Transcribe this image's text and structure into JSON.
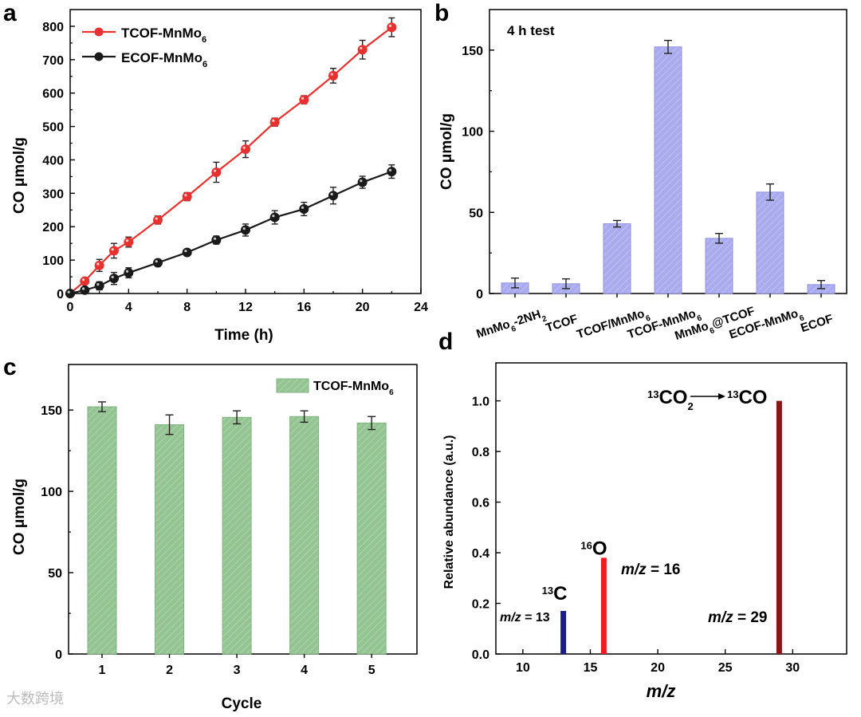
{
  "chart_data": [
    {
      "panel": "a",
      "type": "line",
      "xlabel": "Time (h)",
      "ylabel": "CO μmol/g",
      "xlim": [
        0,
        24
      ],
      "ylim": [
        0,
        850
      ],
      "xticks": [
        "0",
        "4",
        "8",
        "12",
        "16",
        "20",
        "24"
      ],
      "yticks": [
        "0",
        "100",
        "200",
        "300",
        "400",
        "500",
        "600",
        "700",
        "800"
      ],
      "legend_position": "top-left",
      "series": [
        {
          "name": "TCOF-MnMo",
          "name_sub": "6",
          "color": "#e8312f",
          "x": [
            0,
            1,
            2,
            3,
            4,
            6,
            8,
            10,
            12,
            14,
            16,
            18,
            20,
            22
          ],
          "y": [
            0,
            37,
            84,
            128,
            154,
            220,
            290,
            363,
            432,
            513,
            580,
            652,
            730,
            797
          ],
          "err": [
            0,
            8,
            18,
            22,
            15,
            12,
            12,
            30,
            25,
            12,
            12,
            22,
            28,
            28
          ]
        },
        {
          "name": "ECOF-MnMo",
          "name_sub": "6",
          "color": "#1a1a1a",
          "x": [
            0,
            1,
            2,
            3,
            4,
            6,
            8,
            10,
            12,
            14,
            16,
            18,
            20,
            22
          ],
          "y": [
            0,
            10,
            23,
            45,
            62,
            92,
            123,
            160,
            190,
            228,
            253,
            293,
            333,
            365
          ],
          "err": [
            0,
            5,
            12,
            18,
            15,
            10,
            8,
            12,
            18,
            20,
            20,
            25,
            18,
            20
          ]
        }
      ]
    },
    {
      "panel": "b",
      "type": "bar",
      "annotation": "4 h test",
      "ylabel": "CO μmol/g",
      "ylim": [
        0,
        175
      ],
      "yticks": [
        "0",
        "50",
        "100",
        "150"
      ],
      "bar_color": "#a8aaee",
      "categories": [
        {
          "parts": [
            "MnMo",
            "6",
            "-2NH",
            "2"
          ]
        },
        {
          "parts": [
            "TCOF"
          ]
        },
        {
          "parts": [
            "TCOF/MnMo",
            "6"
          ]
        },
        {
          "parts": [
            "TCOF-MnMo",
            "6"
          ]
        },
        {
          "parts": [
            "MnMo",
            "6",
            "@TCOF"
          ]
        },
        {
          "parts": [
            "ECOF-MnMo",
            "6"
          ]
        },
        {
          "parts": [
            "ECOF"
          ]
        }
      ],
      "values": [
        6.5,
        6,
        43,
        152,
        34,
        62.5,
        5.5
      ],
      "err": [
        3,
        3,
        2,
        4,
        3,
        5,
        2.5
      ]
    },
    {
      "panel": "c",
      "type": "bar",
      "xlabel": "Cycle",
      "ylabel": "CO μmol/g",
      "ylim": [
        0,
        178
      ],
      "yticks": [
        "0",
        "50",
        "100",
        "150"
      ],
      "categories": [
        "1",
        "2",
        "3",
        "4",
        "5"
      ],
      "legend_position": "top-right",
      "series": [
        {
          "name": "TCOF-MnMo",
          "name_sub": "6",
          "color": "#93c492",
          "values": [
            152,
            141,
            145.5,
            146,
            142
          ],
          "err": [
            3,
            6,
            4,
            3.5,
            4
          ]
        }
      ]
    },
    {
      "panel": "d",
      "type": "bar",
      "xlabel": "m/z",
      "ylabel": "Relative abundance (a.u.)",
      "xlim": [
        8,
        34
      ],
      "ylim": [
        0,
        1.15
      ],
      "xticks": [
        "10",
        "15",
        "20",
        "25",
        "30"
      ],
      "yticks": [
        "0.0",
        "0.2",
        "0.4",
        "0.6",
        "0.8",
        "1.0"
      ],
      "peaks": [
        {
          "x": 13,
          "y": 0.17,
          "color": "#1b1d8c",
          "sup": "13",
          "element": "C",
          "mz_label": "m/z = 13"
        },
        {
          "x": 16,
          "y": 0.38,
          "color": "#ee1c1c",
          "sup": "16",
          "element": "O",
          "mz_label": "m/z = 16"
        },
        {
          "x": 29,
          "y": 1.0,
          "color": "#8b1414",
          "mz_label": "m/z = 29"
        }
      ],
      "reaction": {
        "sup1": "13",
        "from": "CO",
        "sub": "2",
        "sup2": "13",
        "to": "CO"
      }
    }
  ],
  "panel_letters": [
    "a",
    "b",
    "c",
    "d"
  ],
  "watermark": "大数跨境"
}
